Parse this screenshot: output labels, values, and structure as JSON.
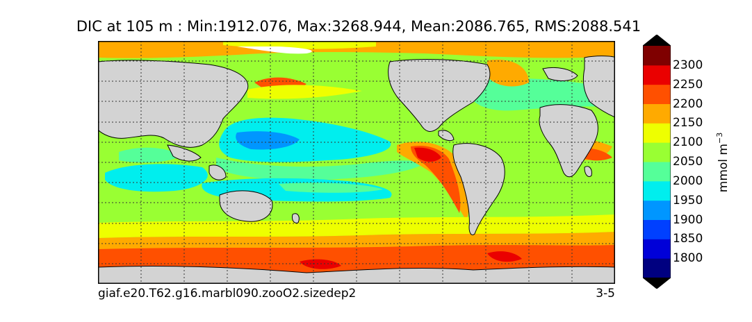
{
  "title": "DIC at 105 m : Min:1912.076, Max:3268.944, Mean:2086.765, RMS:2088.541",
  "footer": {
    "case": "giaf.e20.T62.g16.marbl090.zooO2.sizedep2",
    "period": "3-5"
  },
  "colorbar": {
    "levels": [
      "1800",
      "1850",
      "1900",
      "1950",
      "2000",
      "2050",
      "2100",
      "2150",
      "2200",
      "2250",
      "2300"
    ],
    "colors": [
      "#000080",
      "#0000d8",
      "#0040ff",
      "#0096ff",
      "#00eeee",
      "#55ff99",
      "#99ff33",
      "#eeff00",
      "#ffaa00",
      "#ff5000",
      "#ea0000",
      "#7f0000"
    ],
    "units": "mmol m",
    "units_exp": "−3",
    "extend": "both"
  },
  "map": {
    "land_color": "#d3d3d3",
    "projection": "global lat-lon",
    "gridlines": "dotted"
  }
}
